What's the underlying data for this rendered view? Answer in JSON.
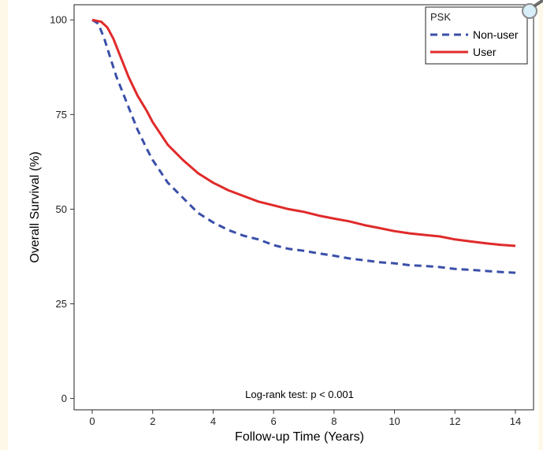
{
  "chart_data": {
    "type": "line",
    "xlabel": "Follow-up Time (Years)",
    "ylabel": "Overall Survival (%)",
    "xlim": [
      -0.6,
      14.6
    ],
    "ylim": [
      -3,
      104
    ],
    "x_ticks": [
      0,
      2,
      4,
      6,
      8,
      10,
      12,
      14
    ],
    "y_ticks": [
      0,
      25,
      50,
      75,
      100
    ],
    "legend": {
      "title": "PSK",
      "placement": "top-right"
    },
    "annotation": "Log-rank test: p < 0.001",
    "grid": false,
    "series": [
      {
        "name": "Non-user",
        "color": "#3a4fa8",
        "style": "dashed",
        "x": [
          0,
          0.2,
          0.4,
          0.6,
          0.8,
          1,
          1.2,
          1.5,
          1.8,
          2,
          2.5,
          3,
          3.5,
          4,
          4.5,
          5,
          5.5,
          6,
          6.5,
          7,
          7.5,
          8,
          8.5,
          9,
          9.5,
          10,
          10.5,
          11,
          11.5,
          12,
          12.5,
          13,
          13.5,
          14
        ],
        "values": [
          100,
          99,
          95,
          90,
          85,
          81,
          77,
          71,
          66,
          63,
          57,
          53,
          49,
          46.5,
          44.5,
          43,
          42,
          40.5,
          39.5,
          39,
          38.3,
          37.7,
          37,
          36.5,
          36,
          35.7,
          35.2,
          35,
          34.7,
          34.2,
          34,
          33.7,
          33.4,
          33.2
        ]
      },
      {
        "name": "User",
        "color": "#e02a2a",
        "style": "solid",
        "x": [
          0,
          0.3,
          0.5,
          0.7,
          0.9,
          1,
          1.2,
          1.5,
          1.8,
          2,
          2.5,
          3,
          3.5,
          4,
          4.5,
          5,
          5.5,
          6,
          6.5,
          7,
          7.5,
          8,
          8.5,
          9,
          9.5,
          10,
          10.5,
          11,
          11.5,
          12,
          12.5,
          13,
          13.5,
          14
        ],
        "values": [
          100,
          99.5,
          98,
          95,
          91,
          89,
          85,
          80,
          76,
          73,
          67,
          63,
          59.5,
          57,
          55,
          53.5,
          52,
          51,
          50,
          49.3,
          48.3,
          47.5,
          46.8,
          45.8,
          45,
          44.2,
          43.6,
          43.2,
          42.8,
          42,
          41.5,
          41,
          40.6,
          40.3
        ]
      }
    ]
  },
  "icons": {
    "zoom": "magnifier-icon"
  }
}
